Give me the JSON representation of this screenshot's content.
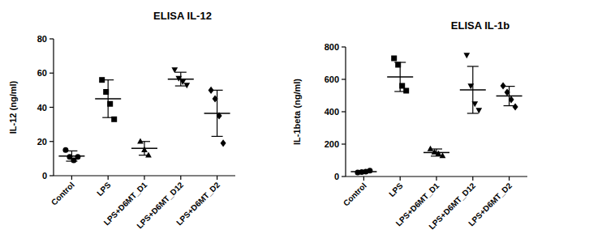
{
  "chart_data": [
    {
      "type": "scatter",
      "title": "ELISA IL-12",
      "y_label": "IL-12 (ng/ml)",
      "categories": [
        "Control",
        "LPS",
        "LPS+D6MT_D1",
        "LPS+D6MT_D12",
        "LPS+D6MT_D2"
      ],
      "values": [
        11.5,
        45,
        16,
        56.5,
        36.5
      ],
      "error": [
        3,
        11,
        4,
        4,
        13.5
      ],
      "points": [
        [
          15,
          11,
          9,
          11
        ],
        [
          56,
          49,
          42,
          33
        ],
        [
          20,
          15,
          12
        ],
        [
          62,
          57,
          55,
          53
        ],
        [
          50,
          45,
          35,
          19
        ]
      ],
      "ylim": [
        0,
        80
      ],
      "yticks": [
        0,
        20,
        40,
        60,
        80
      ],
      "color": "#000000"
    },
    {
      "type": "scatter",
      "title": "ELISA IL-1b",
      "y_label": "IL-1beta (ng/ml)",
      "categories": [
        "Control",
        "LPS",
        "LPS+D6MT_D1",
        "LPS+D6MT_D12",
        "LPS+D6MT_D2"
      ],
      "values": [
        30,
        615,
        148,
        535,
        497
      ],
      "error": [
        6,
        90,
        22,
        145,
        60
      ],
      "points": [
        [
          25,
          28,
          30,
          36
        ],
        [
          730,
          690,
          560,
          530
        ],
        [
          170,
          150,
          140,
          128
        ],
        [
          750,
          560,
          450,
          410
        ],
        [
          560,
          520,
          475,
          430
        ]
      ],
      "ylim": [
        0,
        800
      ],
      "yticks": [
        0,
        200,
        400,
        600,
        800
      ],
      "color": "#000000"
    }
  ]
}
